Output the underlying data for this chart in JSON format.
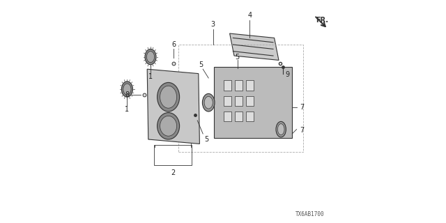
{
  "bg_color": "#ffffff",
  "line_color": "#333333",
  "title": "",
  "diagram_code": "TX6AB1700",
  "fr_label": "FR."
}
